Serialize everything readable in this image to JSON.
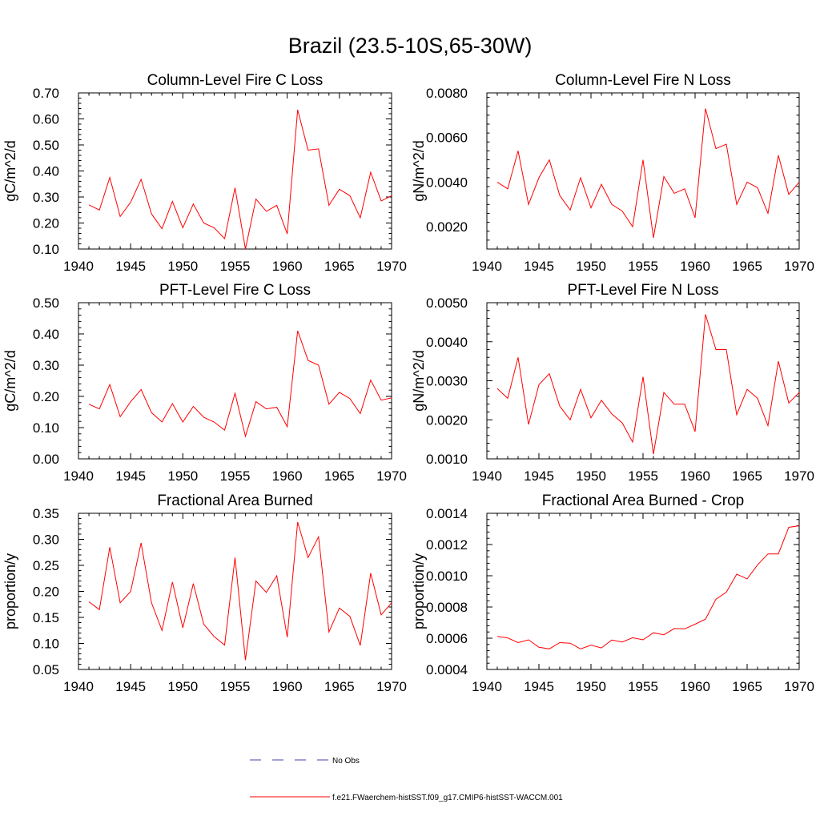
{
  "title": "Brazil (23.5-10S,65-30W)",
  "legend": {
    "obs_label": "No Obs",
    "model_label": "f.e21.FWaerchem-histSST.f09_g17.CMIP6-histSST-WACCM.001",
    "obs_color": "#4040b0",
    "model_color": "#ff0000"
  },
  "colors": {
    "line": "#ff0000",
    "axis": "#000000"
  },
  "chart_data": [
    {
      "type": "line",
      "title": "Column-Level Fire C Loss",
      "ylabel": "gC/m^2/d",
      "xlim": [
        1940,
        1970
      ],
      "ylim": [
        0.1,
        0.7
      ],
      "x_ticks": [
        "1940",
        "1945",
        "1950",
        "1955",
        "1960",
        "1965",
        "1970"
      ],
      "y_ticks": [
        "0.10",
        "0.20",
        "0.30",
        "0.40",
        "0.50",
        "0.60",
        "0.70"
      ],
      "y_tick_values": [
        0.1,
        0.2,
        0.3,
        0.4,
        0.5,
        0.6,
        0.7
      ],
      "x": [
        1941,
        1942,
        1943,
        1944,
        1945,
        1946,
        1947,
        1948,
        1949,
        1950,
        1951,
        1952,
        1953,
        1954,
        1955,
        1956,
        1957,
        1958,
        1959,
        1960,
        1961,
        1962,
        1963,
        1964,
        1965,
        1966,
        1967,
        1968,
        1969,
        1970
      ],
      "series": [
        {
          "name": "f.e21.FWaerchem-histSST.f09_g17.CMIP6-histSST-WACCM.001",
          "values": [
            0.27,
            0.25,
            0.375,
            0.225,
            0.28,
            0.368,
            0.235,
            0.178,
            0.283,
            0.182,
            0.273,
            0.2,
            0.182,
            0.14,
            0.335,
            0.1,
            0.292,
            0.245,
            0.268,
            0.158,
            0.635,
            0.48,
            0.485,
            0.268,
            0.33,
            0.305,
            0.22,
            0.395,
            0.285,
            0.305
          ]
        }
      ]
    },
    {
      "type": "line",
      "title": "Column-Level Fire N Loss",
      "ylabel": "gN/m^2/d",
      "xlim": [
        1940,
        1970
      ],
      "ylim": [
        0.001,
        0.008
      ],
      "x_ticks": [
        "1940",
        "1945",
        "1950",
        "1955",
        "1960",
        "1965",
        "1970"
      ],
      "y_ticks": [
        "0.0020",
        "0.0040",
        "0.0060",
        "0.0080"
      ],
      "y_tick_values": [
        0.002,
        0.004,
        0.006,
        0.008
      ],
      "x": [
        1941,
        1942,
        1943,
        1944,
        1945,
        1946,
        1947,
        1948,
        1949,
        1950,
        1951,
        1952,
        1953,
        1954,
        1955,
        1956,
        1957,
        1958,
        1959,
        1960,
        1961,
        1962,
        1963,
        1964,
        1965,
        1966,
        1967,
        1968,
        1969,
        1970
      ],
      "series": [
        {
          "name": "f.e21.FWaerchem-histSST.f09_g17.CMIP6-histSST-WACCM.001",
          "values": [
            0.004,
            0.0037,
            0.0054,
            0.003,
            0.0042,
            0.005,
            0.0034,
            0.00275,
            0.0042,
            0.00285,
            0.0039,
            0.003,
            0.0027,
            0.002,
            0.005,
            0.0015,
            0.00425,
            0.0035,
            0.0037,
            0.0024,
            0.0073,
            0.0055,
            0.0057,
            0.003,
            0.004,
            0.00375,
            0.0026,
            0.0052,
            0.00345,
            0.004
          ]
        }
      ]
    },
    {
      "type": "line",
      "title": "PFT-Level Fire C Loss",
      "ylabel": "gC/m^2/d",
      "xlim": [
        1940,
        1970
      ],
      "ylim": [
        0.0,
        0.5
      ],
      "x_ticks": [
        "1940",
        "1945",
        "1950",
        "1955",
        "1960",
        "1965",
        "1970"
      ],
      "y_ticks": [
        "0.00",
        "0.10",
        "0.20",
        "0.30",
        "0.40",
        "0.50"
      ],
      "y_tick_values": [
        0.0,
        0.1,
        0.2,
        0.3,
        0.4,
        0.5
      ],
      "x": [
        1941,
        1942,
        1943,
        1944,
        1945,
        1946,
        1947,
        1948,
        1949,
        1950,
        1951,
        1952,
        1953,
        1954,
        1955,
        1956,
        1957,
        1958,
        1959,
        1960,
        1961,
        1962,
        1963,
        1964,
        1965,
        1966,
        1967,
        1968,
        1969,
        1970
      ],
      "series": [
        {
          "name": "f.e21.FWaerchem-histSST.f09_g17.CMIP6-histSST-WACCM.001",
          "values": [
            0.175,
            0.16,
            0.238,
            0.135,
            0.183,
            0.222,
            0.148,
            0.118,
            0.177,
            0.118,
            0.168,
            0.133,
            0.118,
            0.092,
            0.21,
            0.072,
            0.183,
            0.16,
            0.165,
            0.103,
            0.41,
            0.315,
            0.3,
            0.175,
            0.213,
            0.193,
            0.145,
            0.252,
            0.188,
            0.195
          ]
        }
      ]
    },
    {
      "type": "line",
      "title": "PFT-Level Fire N Loss",
      "ylabel": "gN/m^2/d",
      "xlim": [
        1940,
        1970
      ],
      "ylim": [
        0.001,
        0.005
      ],
      "x_ticks": [
        "1940",
        "1945",
        "1950",
        "1955",
        "1960",
        "1965",
        "1970"
      ],
      "y_ticks": [
        "0.0010",
        "0.0020",
        "0.0030",
        "0.0040",
        "0.0050"
      ],
      "y_tick_values": [
        0.001,
        0.002,
        0.003,
        0.004,
        0.005
      ],
      "x": [
        1941,
        1942,
        1943,
        1944,
        1945,
        1946,
        1947,
        1948,
        1949,
        1950,
        1951,
        1952,
        1953,
        1954,
        1955,
        1956,
        1957,
        1958,
        1959,
        1960,
        1961,
        1962,
        1963,
        1964,
        1965,
        1966,
        1967,
        1968,
        1969,
        1970
      ],
      "series": [
        {
          "name": "f.e21.FWaerchem-histSST.f09_g17.CMIP6-histSST-WACCM.001",
          "values": [
            0.0028,
            0.00255,
            0.0036,
            0.00188,
            0.0029,
            0.00318,
            0.00235,
            0.002,
            0.00278,
            0.00205,
            0.0025,
            0.00215,
            0.00192,
            0.00143,
            0.0031,
            0.00112,
            0.0027,
            0.0024,
            0.0024,
            0.0017,
            0.0047,
            0.0038,
            0.0038,
            0.00213,
            0.00278,
            0.00255,
            0.00185,
            0.0035,
            0.00243,
            0.0027
          ]
        }
      ]
    },
    {
      "type": "line",
      "title": "Fractional Area Burned",
      "ylabel": "proportion/y",
      "xlim": [
        1940,
        1970
      ],
      "ylim": [
        0.05,
        0.35
      ],
      "x_ticks": [
        "1940",
        "1945",
        "1950",
        "1955",
        "1960",
        "1965",
        "1970"
      ],
      "y_ticks": [
        "0.05",
        "0.10",
        "0.15",
        "0.20",
        "0.25",
        "0.30",
        "0.35"
      ],
      "y_tick_values": [
        0.05,
        0.1,
        0.15,
        0.2,
        0.25,
        0.3,
        0.35
      ],
      "x": [
        1941,
        1942,
        1943,
        1944,
        1945,
        1946,
        1947,
        1948,
        1949,
        1950,
        1951,
        1952,
        1953,
        1954,
        1955,
        1956,
        1957,
        1958,
        1959,
        1960,
        1961,
        1962,
        1963,
        1964,
        1965,
        1966,
        1967,
        1968,
        1969,
        1970
      ],
      "series": [
        {
          "name": "f.e21.FWaerchem-histSST.f09_g17.CMIP6-histSST-WACCM.001",
          "values": [
            0.18,
            0.165,
            0.285,
            0.178,
            0.2,
            0.293,
            0.178,
            0.125,
            0.218,
            0.13,
            0.215,
            0.137,
            0.113,
            0.097,
            0.265,
            0.068,
            0.22,
            0.198,
            0.23,
            0.112,
            0.333,
            0.265,
            0.305,
            0.122,
            0.168,
            0.152,
            0.096,
            0.235,
            0.155,
            0.178
          ]
        }
      ]
    },
    {
      "type": "line",
      "title": "Fractional Area Burned - Crop",
      "ylabel": "proportion/y",
      "xlim": [
        1940,
        1970
      ],
      "ylim": [
        0.0004,
        0.0014
      ],
      "x_ticks": [
        "1940",
        "1945",
        "1950",
        "1955",
        "1960",
        "1965",
        "1970"
      ],
      "y_ticks": [
        "0.0004",
        "0.0006",
        "0.0008",
        "0.0010",
        "0.0012",
        "0.0014"
      ],
      "y_tick_values": [
        0.0004,
        0.0006,
        0.0008,
        0.001,
        0.0012,
        0.0014
      ],
      "x": [
        1941,
        1942,
        1943,
        1944,
        1945,
        1946,
        1947,
        1948,
        1949,
        1950,
        1951,
        1952,
        1953,
        1954,
        1955,
        1956,
        1957,
        1958,
        1959,
        1960,
        1961,
        1962,
        1963,
        1964,
        1965,
        1966,
        1967,
        1968,
        1969,
        1970
      ],
      "series": [
        {
          "name": "f.e21.FWaerchem-histSST.f09_g17.CMIP6-histSST-WACCM.001",
          "values": [
            0.000612,
            0.000602,
            0.000572,
            0.00059,
            0.000542,
            0.000532,
            0.000572,
            0.000568,
            0.000532,
            0.000556,
            0.000538,
            0.000588,
            0.000576,
            0.000603,
            0.00059,
            0.000635,
            0.000622,
            0.000662,
            0.00066,
            0.00069,
            0.000722,
            0.00085,
            0.000895,
            0.00101,
            0.00098,
            0.00107,
            0.00114,
            0.00114,
            0.00131,
            0.00132
          ]
        }
      ]
    }
  ]
}
